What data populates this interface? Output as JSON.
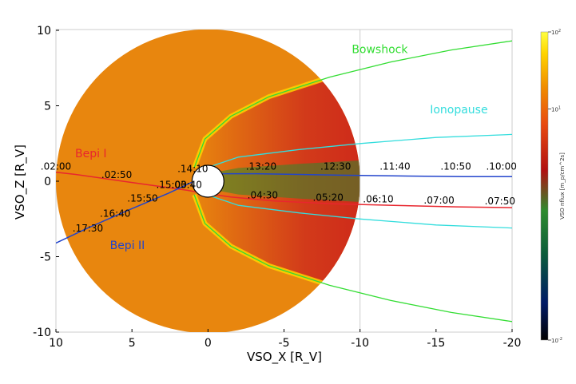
{
  "chart_data": {
    "type": "scatter",
    "xlabel": "VSO_X [R_V]",
    "ylabel": "VSO_Z [R_V]",
    "xlim": [
      10,
      -20
    ],
    "ylim": [
      -10.5,
      10
    ],
    "x_ticks": [
      10,
      5,
      0,
      -5,
      -10,
      -15,
      -20
    ],
    "x_tick_labels": [
      "10",
      "5",
      "0",
      "-5",
      "-10",
      "-15",
      "-20"
    ],
    "y_ticks": [
      10,
      5,
      0,
      -5,
      -10
    ],
    "y_tick_labels": [
      "10",
      "5",
      "0",
      "-5",
      "-10"
    ],
    "grid": false,
    "reference_line_x": -10,
    "colorbar": {
      "label": "VSO nflux [m_p/cm^2s]",
      "tick_labels": [
        "10^2",
        "10^1",
        "10^-2"
      ],
      "tick_values": [
        2,
        1,
        -2
      ],
      "log_range": [
        -2,
        2
      ],
      "colormap": [
        "#000000",
        "#002080",
        "#1a7a1a",
        "#2e8b2e",
        "#c00000",
        "#e84a10",
        "#f08c00",
        "#ffd400",
        "#ffff33"
      ]
    },
    "background_disc": {
      "radius": 10,
      "color": "#e8860e"
    },
    "planet_radius": 1,
    "boundaries": [
      {
        "name": "Bowshock",
        "color": "#33dd33",
        "label_at": [
          -11.3,
          8.5
        ],
        "points": [
          [
            0.9,
            0.9
          ],
          [
            0.2,
            2.8
          ],
          [
            -1.5,
            4.3
          ],
          [
            -4,
            5.6
          ],
          [
            -8,
            6.9
          ],
          [
            -12,
            7.9
          ],
          [
            -16,
            8.7
          ],
          [
            -20,
            9.3
          ]
        ]
      },
      {
        "name": "Ionopause",
        "color": "#33dddd",
        "label_at": [
          -16.5,
          4.5
        ],
        "points": [
          [
            0.6,
            0.5
          ],
          [
            -0.1,
            0.95
          ],
          [
            -2,
            1.6
          ],
          [
            -6,
            2.1
          ],
          [
            -10,
            2.5
          ],
          [
            -15,
            2.9
          ],
          [
            -20,
            3.1
          ]
        ]
      }
    ],
    "series": [
      {
        "name": "Bepi I",
        "color": "#e8262e",
        "label_at": [
          7.7,
          1.6
        ],
        "x": [
          10,
          8.7,
          5.6,
          1.4,
          0.2,
          -1.5,
          -4.3,
          -8.2,
          -12.2,
          -16.3,
          -20
        ],
        "y": [
          0.6,
          0.45,
          0,
          -0.6,
          -0.8,
          -1.05,
          -1.3,
          -1.5,
          -1.6,
          -1.7,
          -1.75
        ],
        "timestamps": [
          "02:00",
          "02:50",
          "03:40",
          "04:30",
          "05:20",
          "06:10",
          "07:00",
          "07:50"
        ],
        "timestamp_positions": [
          [
            10,
            0.6
          ],
          [
            6,
            0.05
          ],
          [
            1.4,
            -0.6
          ],
          [
            -3.6,
            -1.3
          ],
          [
            -7.9,
            -1.45
          ],
          [
            -11.2,
            -1.55
          ],
          [
            -15.2,
            -1.65
          ],
          [
            -19.2,
            -1.7
          ]
        ]
      },
      {
        "name": "Bepi II",
        "color": "#2244cc",
        "label_at": [
          5.3,
          -4.5
        ],
        "x": [
          10,
          7.9,
          5.2,
          2.6,
          0.6,
          -0.9,
          -3.2,
          -8.6,
          -12.6,
          -16.8,
          -20
        ],
        "y": [
          -4.1,
          -3.1,
          -1.9,
          -0.8,
          0.15,
          0.5,
          0.5,
          0.4,
          0.35,
          0.3,
          0.3
        ],
        "timestamps": [
          "14:10",
          "13:20",
          "12:30",
          "11:40",
          "10:50",
          "10:00",
          "15:00",
          "15:50",
          "16:40",
          "17:30"
        ],
        "timestamp_positions": [
          [
            1,
            0.45
          ],
          [
            -3.5,
            0.6
          ],
          [
            -8.4,
            0.6
          ],
          [
            -12.3,
            0.6
          ],
          [
            -16.3,
            0.6
          ],
          [
            -19.3,
            0.6
          ],
          [
            2.4,
            -0.6
          ],
          [
            4.3,
            -1.5
          ],
          [
            6.1,
            -2.5
          ],
          [
            7.9,
            -3.5
          ]
        ]
      }
    ]
  }
}
